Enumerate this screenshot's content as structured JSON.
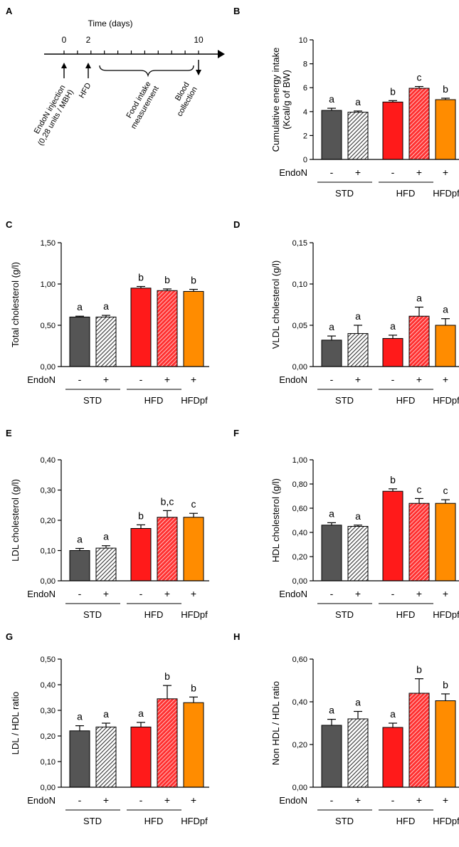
{
  "figure": {
    "groups": [
      "STD",
      "HFD",
      "HFDpf"
    ],
    "endon_label": "EndoN",
    "bar_signs": [
      "-",
      "+",
      "-",
      "+",
      "+"
    ],
    "bar_colors": [
      "#555555",
      "#ffffff",
      "#ff1a1a",
      "#ff3030",
      "#ff8c00"
    ],
    "hatch_colors": [
      "#333333",
      "#ffffff"
    ]
  },
  "timeline": {
    "panel_letter": "A",
    "title": "Time (days)",
    "tick_labels": [
      "0",
      "2",
      "10"
    ],
    "events": [
      {
        "id": "endon-injection",
        "lines": [
          "EndoN injection",
          "(0,28 units / MBH)"
        ]
      },
      {
        "id": "hfd",
        "lines": [
          "HFD"
        ]
      },
      {
        "id": "food-intake",
        "lines": [
          "Food intake",
          "measurement"
        ]
      },
      {
        "id": "blood-collection",
        "lines": [
          "Blood",
          "collection"
        ]
      }
    ]
  },
  "chart_data": [
    {
      "panel": "B",
      "type": "bar",
      "ylabel": [
        "Cumulative energy intake",
        "(Kcal/g of BW)"
      ],
      "categories": [
        "STD -",
        "STD +",
        "HFD -",
        "HFD +",
        "HFDpf +"
      ],
      "values": [
        4.1,
        3.95,
        4.8,
        5.95,
        5.0
      ],
      "errors": [
        0.18,
        0.1,
        0.12,
        0.15,
        0.12
      ],
      "letters": [
        "a",
        "a",
        "b",
        "c",
        "b"
      ],
      "ylim": [
        0,
        10
      ],
      "ticks": [
        "0",
        "2",
        "4",
        "6",
        "8",
        "10"
      ],
      "tick_values": [
        0,
        2,
        4,
        6,
        8,
        10
      ]
    },
    {
      "panel": "C",
      "type": "bar",
      "ylabel": [
        "Total cholesterol (g/l)"
      ],
      "categories": [
        "STD -",
        "STD +",
        "HFD -",
        "HFD +",
        "HFDpf +"
      ],
      "values": [
        0.6,
        0.6,
        0.95,
        0.92,
        0.91
      ],
      "errors": [
        0.01,
        0.02,
        0.02,
        0.02,
        0.025
      ],
      "letters": [
        "a",
        "a",
        "b",
        "b",
        "b"
      ],
      "ylim": [
        0,
        1.5
      ],
      "ticks": [
        "0,00",
        "0,50",
        "1,00",
        "1,50"
      ],
      "tick_values": [
        0,
        0.5,
        1.0,
        1.5
      ]
    },
    {
      "panel": "D",
      "type": "bar",
      "ylabel": [
        "VLDL cholesterol (g/l)"
      ],
      "categories": [
        "STD -",
        "STD +",
        "HFD -",
        "HFD +",
        "HFDpf +"
      ],
      "values": [
        0.032,
        0.04,
        0.034,
        0.061,
        0.05
      ],
      "errors": [
        0.005,
        0.01,
        0.004,
        0.011,
        0.008
      ],
      "letters": [
        "a",
        "a",
        "a",
        "a",
        "a"
      ],
      "ylim": [
        0,
        0.15
      ],
      "ticks": [
        "0,00",
        "0,05",
        "0,10",
        "0,15"
      ],
      "tick_values": [
        0,
        0.05,
        0.1,
        0.15
      ]
    },
    {
      "panel": "E",
      "type": "bar",
      "ylabel": [
        "LDL cholesterol (g/l)"
      ],
      "categories": [
        "STD -",
        "STD +",
        "HFD -",
        "HFD +",
        "HFDpf +"
      ],
      "values": [
        0.1,
        0.108,
        0.173,
        0.21,
        0.21
      ],
      "errors": [
        0.007,
        0.008,
        0.012,
        0.022,
        0.013
      ],
      "letters": [
        "a",
        "a",
        "b",
        "b,c",
        "c"
      ],
      "ylim": [
        0,
        0.4
      ],
      "ticks": [
        "0,00",
        "0,10",
        "0,20",
        "0,30",
        "0,40"
      ],
      "tick_values": [
        0,
        0.1,
        0.2,
        0.3,
        0.4
      ]
    },
    {
      "panel": "F",
      "type": "bar",
      "ylabel": [
        "HDL cholesterol (g/l)"
      ],
      "categories": [
        "STD -",
        "STD +",
        "HFD -",
        "HFD +",
        "HFDpf +"
      ],
      "values": [
        0.46,
        0.45,
        0.74,
        0.64,
        0.64
      ],
      "errors": [
        0.02,
        0.01,
        0.02,
        0.04,
        0.03
      ],
      "letters": [
        "a",
        "a",
        "b",
        "c",
        "c"
      ],
      "ylim": [
        0,
        1.0
      ],
      "ticks": [
        "0,00",
        "0,20",
        "0,40",
        "0,60",
        "0,80",
        "1,00"
      ],
      "tick_values": [
        0,
        0.2,
        0.4,
        0.6,
        0.8,
        1.0
      ]
    },
    {
      "panel": "G",
      "type": "bar",
      "ylabel": [
        "LDL / HDL ratio"
      ],
      "categories": [
        "STD -",
        "STD +",
        "HFD -",
        "HFD +",
        "HFDpf +"
      ],
      "values": [
        0.22,
        0.235,
        0.235,
        0.345,
        0.33
      ],
      "errors": [
        0.02,
        0.015,
        0.018,
        0.052,
        0.022
      ],
      "letters": [
        "a",
        "a",
        "a",
        "b",
        "b"
      ],
      "ylim": [
        0,
        0.5
      ],
      "ticks": [
        "0,00",
        "0,10",
        "0,20",
        "0,30",
        "0,40",
        "0,50"
      ],
      "tick_values": [
        0,
        0.1,
        0.2,
        0.3,
        0.4,
        0.5
      ]
    },
    {
      "panel": "H",
      "type": "bar",
      "ylabel": [
        "Non HDL / HDL ratio"
      ],
      "categories": [
        "STD -",
        "STD +",
        "HFD -",
        "HFD +",
        "HFDpf +"
      ],
      "values": [
        0.29,
        0.32,
        0.28,
        0.44,
        0.405
      ],
      "errors": [
        0.028,
        0.035,
        0.02,
        0.068,
        0.032
      ],
      "letters": [
        "a",
        "a",
        "a",
        "b",
        "b"
      ],
      "ylim": [
        0,
        0.6
      ],
      "ticks": [
        "0,00",
        "0,20",
        "0,40",
        "0,60"
      ],
      "tick_values": [
        0,
        0.2,
        0.4,
        0.6
      ]
    }
  ]
}
